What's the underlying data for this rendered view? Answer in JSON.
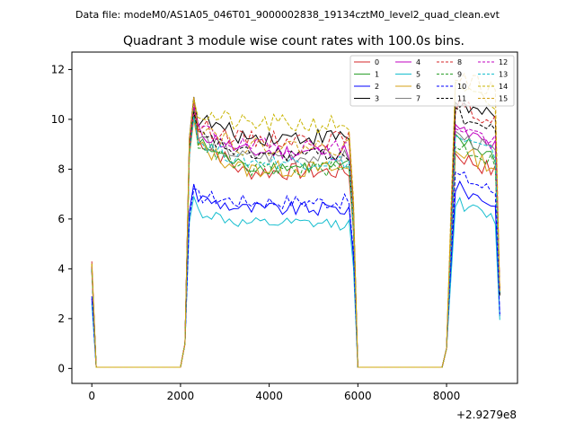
{
  "chart_data": {
    "type": "line",
    "subtitle": "Data file: modeM0/AS1A05_046T01_9000002838_19134cztM0_level2_quad_clean.evt",
    "title": "Quadrant 3 module wise count rates with 100.0s bins.",
    "xlabel": "",
    "ylabel": "",
    "x_offset_label": "+2.9279e8",
    "xlim": [
      -450,
      9600
    ],
    "ylim": [
      -0.6,
      12.7
    ],
    "x_ticks": [
      0,
      2000,
      4000,
      6000,
      8000
    ],
    "x_tick_labels": [
      "0",
      "2000",
      "4000",
      "6000",
      "8000"
    ],
    "y_ticks": [
      0,
      2,
      4,
      6,
      8,
      10,
      12
    ],
    "y_tick_labels": [
      "0",
      "2",
      "4",
      "6",
      "8",
      "10",
      "12"
    ],
    "legend_position": "top-right",
    "legend_columns": 4,
    "segments": [
      {
        "start": 0,
        "end": 2100,
        "shape": "start_spike"
      },
      {
        "start": 2100,
        "end": 5900,
        "shape": "plateau"
      },
      {
        "start": 5900,
        "end": 8000,
        "shape": "zero"
      },
      {
        "start": 8000,
        "end": 9200,
        "shape": "plateau_end"
      }
    ],
    "series": [
      {
        "name": "0",
        "color": "#d62728",
        "dash": false,
        "level": 7.9,
        "peak": 10.8,
        "start": 4.3,
        "end_level": 8.6,
        "noise": 0.35
      },
      {
        "name": "1",
        "color": "#2ca02c",
        "dash": false,
        "level": 8.1,
        "peak": 10.2,
        "start": 4.1,
        "end_level": 9.2,
        "noise": 0.3
      },
      {
        "name": "2",
        "color": "#0000ff",
        "dash": false,
        "level": 6.4,
        "peak": 7.4,
        "start": 2.8,
        "end_level": 7.3,
        "noise": 0.3
      },
      {
        "name": "3",
        "color": "#000000",
        "dash": false,
        "level": 9.3,
        "peak": 10.9,
        "start": 3.9,
        "end_level": 10.7,
        "noise": 0.35
      },
      {
        "name": "4",
        "color": "#c000c0",
        "dash": false,
        "level": 8.7,
        "peak": 10.5,
        "start": 4.0,
        "end_level": 9.6,
        "noise": 0.35
      },
      {
        "name": "5",
        "color": "#17becf",
        "dash": false,
        "level": 5.8,
        "peak": 6.9,
        "start": 2.6,
        "end_level": 6.7,
        "noise": 0.25
      },
      {
        "name": "6",
        "color": "#d4a017",
        "dash": false,
        "level": 8.0,
        "peak": 10.0,
        "start": 4.2,
        "end_level": 8.8,
        "noise": 0.35
      },
      {
        "name": "7",
        "color": "#808080",
        "dash": false,
        "level": 8.5,
        "peak": 10.2,
        "start": 4.0,
        "end_level": 9.4,
        "noise": 0.3
      },
      {
        "name": "8",
        "color": "#d62728",
        "dash": true,
        "level": 9.2,
        "peak": 10.4,
        "start": 4.1,
        "end_level": 10.6,
        "noise": 0.35
      },
      {
        "name": "9",
        "color": "#2ca02c",
        "dash": true,
        "level": 8.0,
        "peak": 10.4,
        "start": 4.0,
        "end_level": 9.0,
        "noise": 0.3
      },
      {
        "name": "10",
        "color": "#0000ff",
        "dash": true,
        "level": 6.7,
        "peak": 7.2,
        "start": 2.9,
        "end_level": 7.8,
        "noise": 0.3
      },
      {
        "name": "11",
        "color": "#000000",
        "dash": true,
        "level": 8.6,
        "peak": 10.3,
        "start": 4.0,
        "end_level": 10.2,
        "noise": 0.3
      },
      {
        "name": "12",
        "color": "#c000c0",
        "dash": true,
        "level": 8.9,
        "peak": 10.6,
        "start": 4.1,
        "end_level": 9.8,
        "noise": 0.35
      },
      {
        "name": "13",
        "color": "#17becf",
        "dash": true,
        "level": 8.3,
        "peak": 10.1,
        "start": 4.0,
        "end_level": 9.3,
        "noise": 0.3
      },
      {
        "name": "14",
        "color": "#c8b400",
        "dash": true,
        "level": 9.8,
        "peak": 10.8,
        "start": 4.2,
        "end_level": 11.2,
        "noise": 0.4
      },
      {
        "name": "15",
        "color": "#d4a017",
        "dash": true,
        "level": 8.9,
        "peak": 10.9,
        "start": 4.1,
        "end_level": 11.8,
        "noise": 0.35
      }
    ]
  }
}
